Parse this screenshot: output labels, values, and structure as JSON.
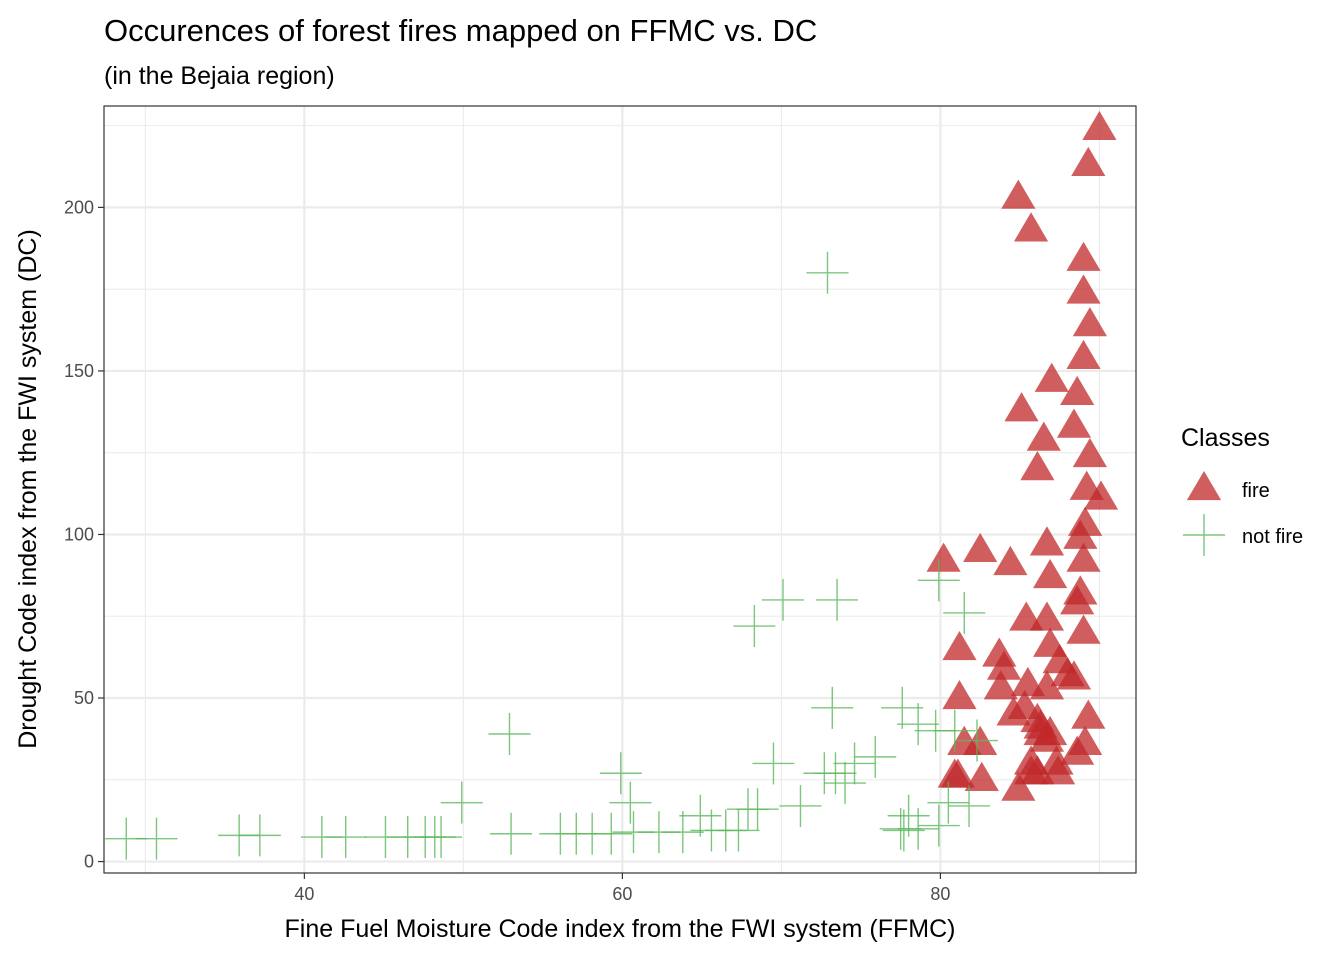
{
  "chart_data": {
    "type": "scatter",
    "title": "Occurences of forest fires mapped on FFMC vs. DC",
    "subtitle": "(in the Bejaia region)",
    "xlabel": "Fine Fuel Moisture Code index from the FWI system (FFMC)",
    "ylabel": "Drought Code index from the FWI system (DC)",
    "xlim": [
      27.4,
      92.3
    ],
    "ylim": [
      -3.5,
      231
    ],
    "x_ticks": [
      40,
      60,
      80
    ],
    "x_tick_labels": [
      "40",
      "60",
      "80"
    ],
    "y_ticks": [
      0,
      50,
      100,
      150,
      200
    ],
    "y_tick_labels": [
      "0",
      "50",
      "100",
      "150",
      "200"
    ],
    "grid": true,
    "legend": {
      "title": "Classes",
      "position": "right"
    },
    "series": [
      {
        "name": "fire",
        "marker": "triangle",
        "color": "#c0282a",
        "points": [
          [
            90,
            224
          ],
          [
            89.3,
            213
          ],
          [
            84.9,
            203
          ],
          [
            85.7,
            193
          ],
          [
            89,
            184
          ],
          [
            89,
            174
          ],
          [
            89.4,
            164
          ],
          [
            89,
            154
          ],
          [
            87,
            147
          ],
          [
            88.6,
            143
          ],
          [
            85.1,
            138
          ],
          [
            88.4,
            133
          ],
          [
            86.5,
            129
          ],
          [
            89.4,
            124
          ],
          [
            86.1,
            120
          ],
          [
            89.2,
            114
          ],
          [
            90.1,
            111
          ],
          [
            89.1,
            103
          ],
          [
            88.8,
            99
          ],
          [
            86.7,
            97
          ],
          [
            80.2,
            92
          ],
          [
            82.5,
            95
          ],
          [
            84.4,
            91
          ],
          [
            89,
            92
          ],
          [
            86.9,
            87
          ],
          [
            88.8,
            82
          ],
          [
            88.6,
            79
          ],
          [
            85.4,
            74
          ],
          [
            86.7,
            74
          ],
          [
            89,
            70
          ],
          [
            81.2,
            65
          ],
          [
            83.7,
            63
          ],
          [
            86.9,
            66
          ],
          [
            84,
            59
          ],
          [
            87.5,
            61
          ],
          [
            88,
            57
          ],
          [
            88.4,
            56
          ],
          [
            85.5,
            54
          ],
          [
            86.7,
            53
          ],
          [
            83.8,
            53
          ],
          [
            81.2,
            50
          ],
          [
            85.3,
            47
          ],
          [
            84.6,
            45
          ],
          [
            86.1,
            43
          ],
          [
            89.3,
            44
          ],
          [
            86.3,
            41
          ],
          [
            86.9,
            39
          ],
          [
            86.3,
            39
          ],
          [
            86.7,
            37
          ],
          [
            89.1,
            36
          ],
          [
            81.5,
            36
          ],
          [
            82.5,
            36
          ],
          [
            88.6,
            33
          ],
          [
            85.7,
            30
          ],
          [
            87.3,
            30
          ],
          [
            80.9,
            26
          ],
          [
            86.1,
            27
          ],
          [
            85.7,
            27
          ],
          [
            81.1,
            26
          ],
          [
            87.4,
            27
          ],
          [
            82.6,
            25
          ],
          [
            84.9,
            22
          ]
        ]
      },
      {
        "name": "not fire",
        "marker": "plus",
        "color": "#5cb85c",
        "points": [
          [
            72.9,
            180
          ],
          [
            79.9,
            86
          ],
          [
            81.5,
            76
          ],
          [
            70.1,
            80
          ],
          [
            73.5,
            80
          ],
          [
            68.3,
            72
          ],
          [
            73.2,
            47
          ],
          [
            77.6,
            47
          ],
          [
            78.6,
            42
          ],
          [
            79.7,
            40
          ],
          [
            80.9,
            40
          ],
          [
            82.3,
            37
          ],
          [
            52.9,
            39
          ],
          [
            69.5,
            30
          ],
          [
            75.9,
            32
          ],
          [
            74.6,
            30
          ],
          [
            73.4,
            27
          ],
          [
            72.7,
            27
          ],
          [
            74,
            24
          ],
          [
            59.9,
            27
          ],
          [
            60.5,
            18
          ],
          [
            49.9,
            18
          ],
          [
            71.2,
            17
          ],
          [
            67.9,
            16
          ],
          [
            68.5,
            16
          ],
          [
            80.5,
            18
          ],
          [
            81.8,
            17
          ],
          [
            64.9,
            14
          ],
          [
            77.5,
            10
          ],
          [
            78.6,
            10
          ],
          [
            79.9,
            11
          ],
          [
            78,
            14
          ],
          [
            28.8,
            7
          ],
          [
            30.7,
            7
          ],
          [
            35.9,
            8
          ],
          [
            37.2,
            8
          ],
          [
            41.1,
            7.5
          ],
          [
            42.6,
            7.5
          ],
          [
            45.1,
            7.5
          ],
          [
            46.5,
            7.5
          ],
          [
            47.6,
            7.5
          ],
          [
            48.2,
            7.5
          ],
          [
            48.6,
            7.5
          ],
          [
            53,
            8.5
          ],
          [
            56.1,
            8.5
          ],
          [
            57.1,
            8.5
          ],
          [
            58.1,
            8.5
          ],
          [
            59.3,
            8.5
          ],
          [
            60.7,
            9
          ],
          [
            62.3,
            9
          ],
          [
            63.8,
            9
          ],
          [
            66.5,
            9.5
          ],
          [
            67.3,
            9.5
          ],
          [
            65.6,
            9.5
          ],
          [
            77.7,
            9.5
          ]
        ]
      }
    ]
  }
}
